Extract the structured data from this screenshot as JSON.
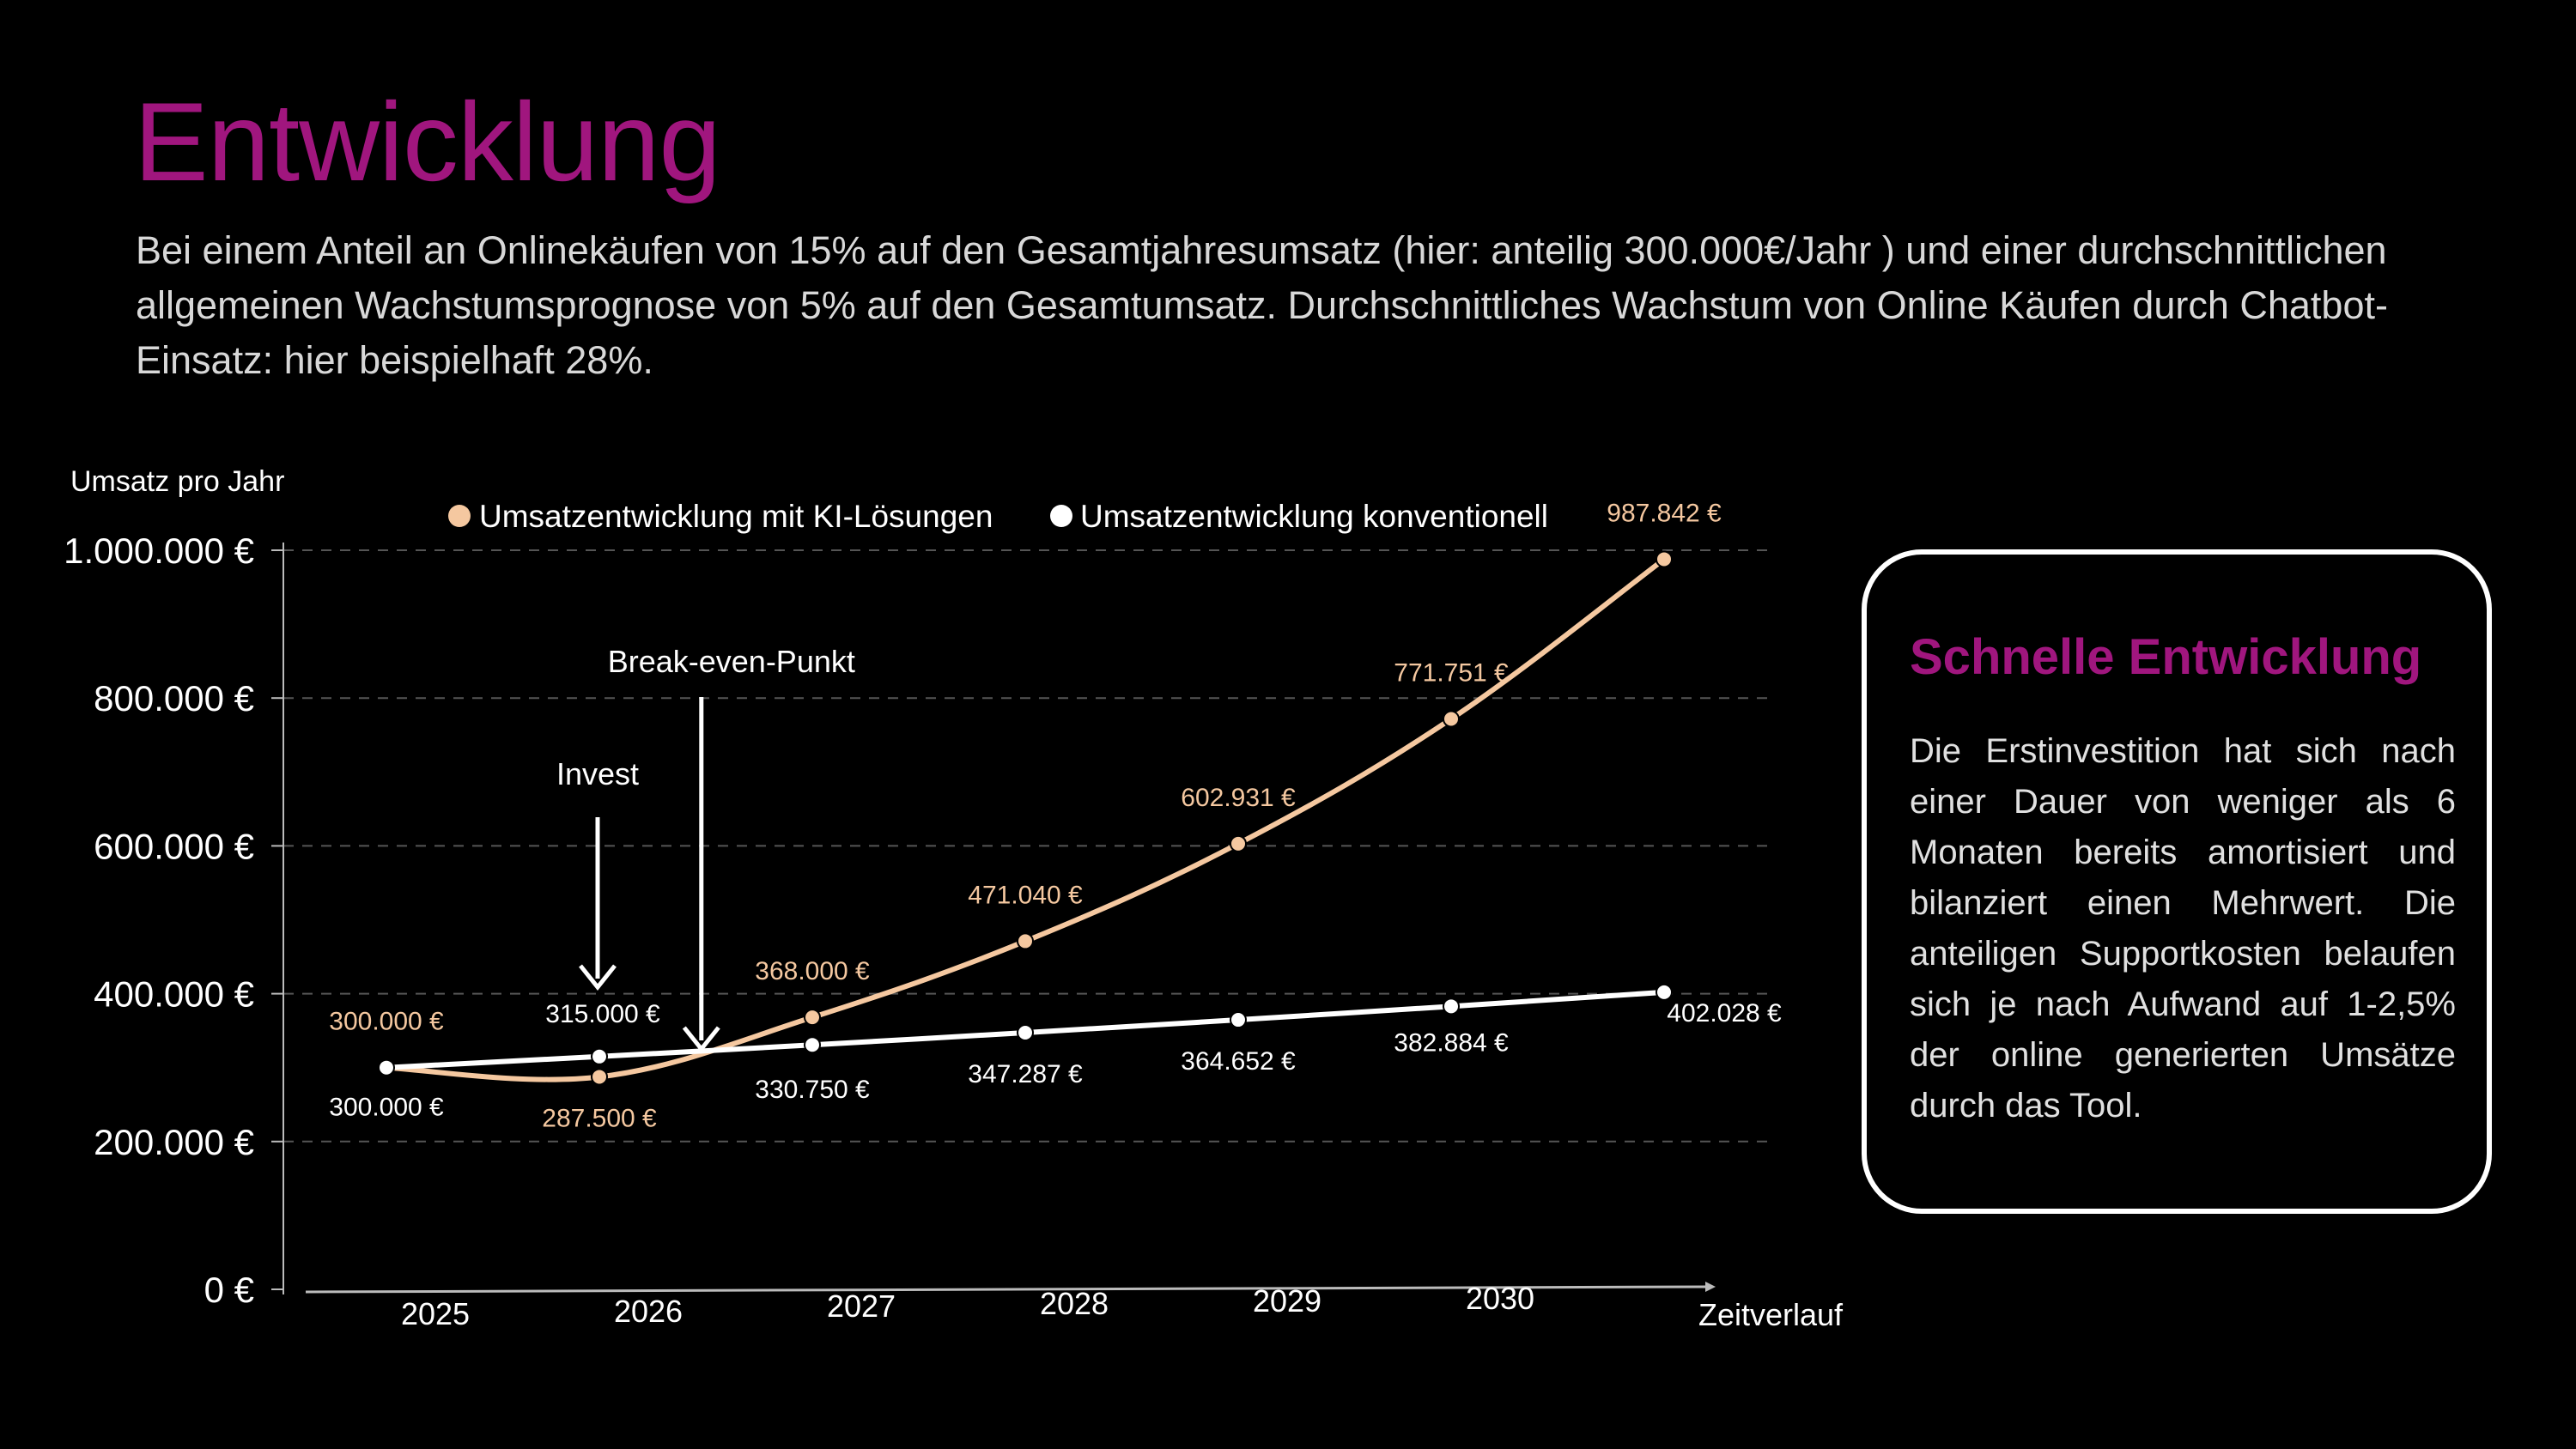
{
  "title": "Entwicklung",
  "subtitle": "Bei einem Anteil an Onlinekäufen von 15% auf den Gesamtjahresumsatz (hier: anteilig 300.000€/Jahr ) und einer durchschnittlichen allgemeinen Wachstumsprognose von 5% auf den Gesamtumsatz. Durchschnittliches Wachstum von Online Käufen durch Chatbot-Einsatz: hier beispielhaft 28%.",
  "infobox": {
    "title": "Schnelle Entwicklung",
    "text": "Die Erstinvestition hat sich nach einer Dauer von weniger als 6 Monaten bereits amortisiert und bilanziert einen Mehrwert. Die anteiligen Supportkosten belaufen sich je nach Aufwand auf 1-2,5% der online generierten Umsätze durch das Tool."
  },
  "colors": {
    "accent": "#a0167e",
    "ki_series": "#f5c8a0",
    "conventional_series": "#ffffff",
    "background": "#000000",
    "grid": "#555555"
  },
  "chart_data": {
    "type": "line",
    "ylabel": "Umsatz pro Jahr",
    "xlabel": "Zeitverlauf",
    "ylim": [
      0,
      1000000
    ],
    "yticks": [
      0,
      200000,
      400000,
      600000,
      800000,
      1000000
    ],
    "ytick_labels": [
      "0 €",
      "200.000 €",
      "400.000 €",
      "600.000 €",
      "800.000 €",
      "1.000.000 €"
    ],
    "categories": [
      "2025",
      "2026",
      "2027",
      "2028",
      "2029",
      "2030"
    ],
    "grid": true,
    "legend_position": "top",
    "series": [
      {
        "name": "Umsatzentwicklung mit KI-Lösungen",
        "color": "#f5c8a0",
        "x": [
          2025,
          2026,
          2027,
          2028,
          2029,
          2030,
          2031
        ],
        "values": [
          300000,
          287500,
          368000,
          471040,
          602931,
          771751,
          987842
        ],
        "labels": [
          "300.000 €",
          "287.500 €",
          "368.000 €",
          "471.040 €",
          "602.931 €",
          "771.751 €",
          "987.842 €"
        ]
      },
      {
        "name": "Umsatzentwicklung konventionell",
        "color": "#ffffff",
        "x": [
          2025,
          2026,
          2027,
          2028,
          2029,
          2030,
          2031
        ],
        "values": [
          300000,
          315000,
          330750,
          347287,
          364652,
          382884,
          402028
        ],
        "labels": [
          "300.000 €",
          "315.000 €",
          "330.750 €",
          "347.287 €",
          "364.652 €",
          "382.884 €",
          "402.028 €"
        ]
      }
    ],
    "annotations": [
      {
        "text": "Invest",
        "x": 2026
      },
      {
        "text": "Break-even-Punkt",
        "x": 2026.6
      }
    ]
  }
}
